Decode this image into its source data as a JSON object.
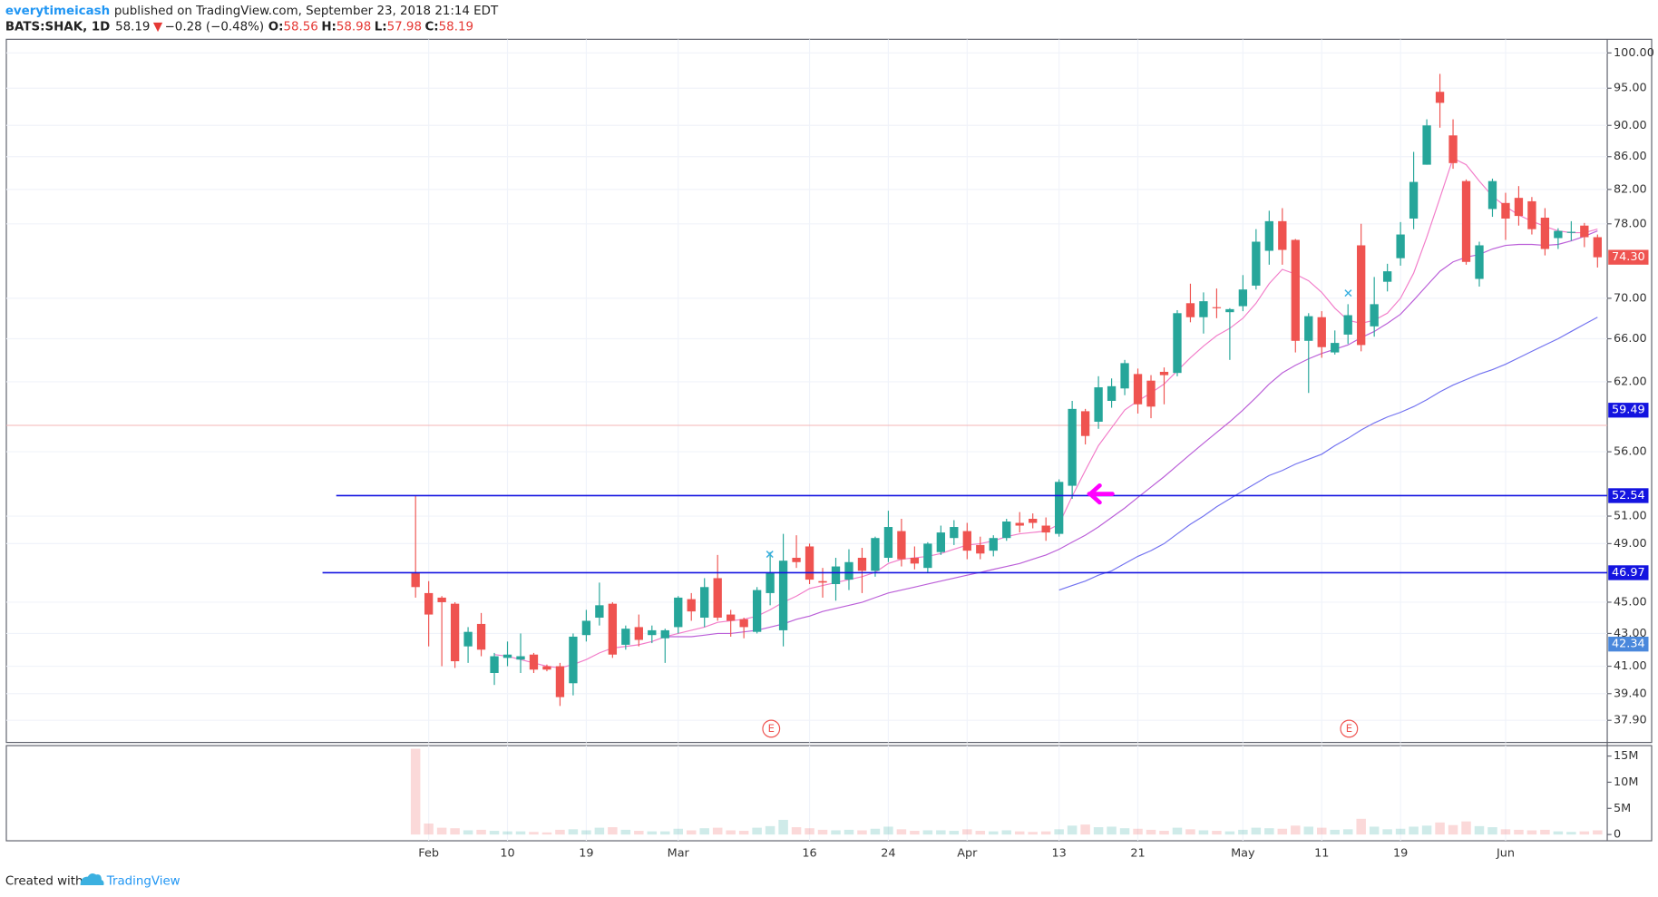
{
  "header": {
    "author": "everytimeicash",
    "published": "published on TradingView.com, September 23, 2018 21:14 EDT",
    "symbol": "BATS:SHAK, 1D",
    "last": 58.19,
    "arrow": "▼",
    "change": "−0.28 (−0.48%)",
    "open_label": "O:",
    "open": 58.56,
    "high_label": "H:",
    "high": 58.98,
    "low_label": "L:",
    "low": 57.98,
    "close_label": "C:",
    "close": 58.19
  },
  "footer": {
    "created": "Created with",
    "brand": "TradingView"
  },
  "chart_data": {
    "type": "candlestick",
    "log": true,
    "grid": true,
    "up_color": "#26a69a",
    "down_color": "#ef5350",
    "categories": [
      null,
      "Feb",
      null,
      null,
      null,
      null,
      null,
      "10",
      null,
      null,
      null,
      null,
      null,
      "19",
      null,
      null,
      null,
      null,
      null,
      null,
      "Mar",
      null,
      null,
      null,
      null,
      null,
      null,
      null,
      null,
      null,
      "16",
      null,
      null,
      null,
      null,
      null,
      "24",
      null,
      null,
      null,
      null,
      null,
      "Apr",
      null,
      null,
      null,
      null,
      null,
      null,
      "13",
      null,
      null,
      null,
      null,
      null,
      "21",
      null,
      null,
      null,
      null,
      null,
      null,
      null,
      "May",
      null,
      null,
      null,
      null,
      null,
      "11",
      null,
      null,
      null,
      null,
      null,
      "19",
      null,
      null,
      null,
      null,
      null,
      null,
      null,
      "Jun",
      null,
      null,
      null,
      null,
      null,
      null,
      null
    ],
    "open": [
      47.0,
      45.6,
      45.3,
      44.9,
      42.2,
      43.6,
      40.6,
      41.5,
      41.4,
      41.7,
      41.0,
      41.0,
      40.0,
      42.9,
      44.0,
      44.9,
      42.3,
      43.4,
      42.9,
      42.7,
      43.4,
      45.2,
      44.0,
      46.6,
      44.2,
      43.9,
      43.1,
      45.6,
      43.2,
      48.0,
      48.8,
      46.4,
      46.2,
      46.5,
      48.0,
      47.1,
      48.0,
      49.9,
      48.0,
      47.3,
      48.4,
      49.4,
      49.9,
      48.9,
      48.5,
      49.4,
      50.5,
      50.8,
      50.3,
      49.7,
      53.3,
      59.4,
      58.5,
      60.3,
      61.4,
      62.7,
      62.1,
      62.9,
      62.8,
      69.5,
      68.1,
      69.1,
      68.6,
      69.2,
      71.3,
      75.0,
      78.3,
      76.2,
      65.8,
      68.1,
      64.7,
      66.4,
      75.6,
      67.2,
      71.7,
      74.2,
      78.6,
      85.0,
      94.5,
      88.7,
      83.0,
      72.0,
      79.7,
      80.4,
      81.0,
      80.6,
      78.7,
      76.4,
      77.0,
      77.8,
      76.5
    ],
    "high": [
      52.5,
      46.4,
      45.4,
      45.0,
      43.4,
      44.3,
      41.8,
      42.5,
      43.0,
      41.8,
      41.1,
      41.2,
      43.0,
      44.5,
      46.3,
      45.0,
      43.5,
      44.2,
      43.5,
      43.3,
      45.4,
      45.6,
      46.6,
      48.2,
      44.5,
      44.0,
      46.0,
      48.4,
      49.7,
      49.6,
      49.0,
      47.3,
      48.0,
      48.6,
      48.7,
      49.5,
      51.4,
      50.8,
      48.8,
      49.1,
      50.3,
      50.7,
      50.5,
      49.5,
      49.6,
      50.8,
      51.3,
      51.2,
      50.9,
      53.8,
      60.3,
      59.6,
      62.5,
      62.3,
      64.0,
      63.2,
      62.6,
      63.3,
      68.8,
      71.5,
      70.6,
      71.0,
      69.0,
      72.4,
      77.4,
      79.5,
      79.8,
      76.3,
      68.5,
      68.7,
      66.8,
      69.4,
      78.0,
      72.2,
      73.6,
      78.2,
      86.6,
      90.8,
      97.0,
      90.8,
      83.2,
      76.0,
      83.3,
      81.6,
      82.4,
      81.1,
      79.8,
      77.5,
      78.3,
      78.1,
      76.8
    ],
    "low": [
      45.3,
      42.2,
      41.0,
      40.9,
      41.2,
      41.6,
      39.9,
      41.0,
      40.6,
      40.6,
      40.7,
      38.7,
      39.3,
      42.5,
      43.5,
      41.5,
      42.0,
      42.2,
      42.4,
      41.2,
      43.0,
      43.8,
      43.4,
      43.8,
      42.8,
      42.7,
      43.0,
      44.8,
      42.2,
      47.3,
      46.2,
      45.3,
      45.1,
      45.8,
      45.6,
      46.7,
      47.7,
      47.4,
      47.2,
      47.0,
      48.2,
      48.9,
      47.9,
      47.9,
      48.1,
      49.2,
      49.8,
      50.1,
      49.2,
      49.5,
      52.3,
      56.6,
      57.9,
      59.7,
      60.8,
      59.2,
      58.8,
      60.0,
      62.5,
      67.6,
      66.5,
      68.0,
      64.0,
      68.7,
      70.9,
      73.5,
      73.5,
      64.7,
      61.0,
      64.2,
      64.5,
      65.5,
      64.8,
      66.2,
      70.7,
      73.4,
      77.4,
      85.0,
      89.7,
      84.5,
      73.5,
      71.2,
      78.8,
      76.2,
      77.8,
      76.8,
      74.5,
      75.2,
      76.1,
      75.4,
      73.2
    ],
    "close": [
      46.0,
      44.2,
      45.0,
      41.3,
      43.1,
      42.0,
      41.6,
      41.7,
      41.6,
      40.8,
      40.8,
      39.2,
      42.8,
      43.8,
      44.8,
      41.7,
      43.3,
      42.6,
      43.2,
      43.2,
      45.3,
      44.4,
      46.0,
      44.0,
      43.8,
      43.4,
      45.8,
      47.0,
      47.8,
      47.7,
      46.5,
      46.3,
      47.4,
      47.7,
      47.1,
      49.4,
      50.2,
      47.9,
      47.6,
      49.0,
      49.8,
      50.2,
      48.5,
      48.3,
      49.4,
      50.6,
      50.3,
      50.5,
      49.8,
      53.6,
      59.6,
      57.3,
      61.5,
      61.6,
      63.7,
      60.0,
      59.8,
      62.6,
      68.5,
      68.1,
      69.7,
      69.0,
      68.9,
      70.9,
      76.0,
      78.3,
      75.1,
      65.8,
      68.2,
      65.2,
      65.6,
      68.3,
      65.4,
      69.4,
      72.8,
      76.8,
      82.9,
      90.0,
      93.0,
      85.2,
      73.8,
      75.6,
      83.0,
      78.6,
      78.9,
      77.4,
      75.2,
      77.2,
      77.1,
      76.5,
      74.3
    ],
    "ylim": [
      36.7,
      102.0
    ],
    "yticks": [
      {
        "value": 100,
        "label": "100.00"
      },
      {
        "value": 95,
        "label": "95.00"
      },
      {
        "value": 90,
        "label": "90.00"
      },
      {
        "value": 86,
        "label": "86.00"
      },
      {
        "value": 82,
        "label": "82.00"
      },
      {
        "value": 78,
        "label": "78.00"
      },
      {
        "value": 70,
        "label": "70.00"
      },
      {
        "value": 66,
        "label": "66.00"
      },
      {
        "value": 62,
        "label": "62.00"
      },
      {
        "value": 56,
        "label": "56.00"
      },
      {
        "value": 51,
        "label": "51.00"
      },
      {
        "value": 49,
        "label": "49.00"
      },
      {
        "value": 45,
        "label": "45.00"
      },
      {
        "value": 43,
        "label": "43.00"
      },
      {
        "value": 41,
        "label": "41.00"
      },
      {
        "value": 39.4,
        "label": "39.40"
      },
      {
        "value": 37.9,
        "label": "37.90"
      }
    ],
    "series": [
      {
        "color": "#f27cc9",
        "values": [
          null,
          null,
          null,
          null,
          null,
          null,
          41.7,
          41.6,
          41.4,
          41.2,
          41.0,
          40.9,
          41.1,
          41.4,
          41.8,
          42.1,
          42.2,
          42.3,
          42.5,
          42.8,
          43.0,
          43.2,
          43.4,
          43.7,
          43.8,
          43.9,
          44.1,
          44.5,
          45.0,
          45.4,
          45.9,
          46.1,
          46.3,
          46.5,
          46.7,
          47.0,
          47.6,
          47.9,
          48.0,
          48.1,
          48.3,
          48.6,
          48.9,
          49.0,
          49.2,
          49.5,
          49.7,
          49.8,
          49.9,
          50.4,
          52.5,
          54.5,
          56.5,
          58.0,
          59.5,
          60.3,
          61.0,
          61.8,
          63.0,
          64.2,
          65.3,
          66.3,
          67.0,
          68.0,
          69.5,
          71.5,
          73.0,
          72.5,
          71.8,
          70.6,
          69.0,
          67.8,
          67.5,
          67.8,
          68.5,
          70.0,
          72.6,
          76.5,
          81.0,
          85.8,
          85.0,
          83.0,
          81.2,
          80.0,
          79.0,
          78.3,
          77.7,
          77.2,
          77.0,
          77.0,
          77.4
        ]
      },
      {
        "color": "#bb5fd8",
        "values": [
          null,
          null,
          null,
          null,
          null,
          null,
          null,
          null,
          null,
          null,
          null,
          null,
          null,
          null,
          null,
          null,
          null,
          null,
          null,
          42.8,
          42.8,
          42.8,
          42.9,
          43.0,
          43.0,
          43.1,
          43.2,
          43.4,
          43.6,
          43.9,
          44.1,
          44.4,
          44.6,
          44.8,
          45.0,
          45.3,
          45.6,
          45.8,
          46.0,
          46.2,
          46.4,
          46.6,
          46.8,
          47.0,
          47.2,
          47.4,
          47.6,
          47.9,
          48.2,
          48.6,
          49.1,
          49.6,
          50.2,
          50.9,
          51.6,
          52.4,
          53.2,
          54.0,
          54.9,
          55.8,
          56.7,
          57.6,
          58.5,
          59.5,
          60.6,
          61.8,
          62.8,
          63.5,
          64.1,
          64.6,
          65.0,
          65.4,
          66.1,
          66.7,
          67.5,
          68.4,
          69.8,
          71.3,
          72.8,
          73.8,
          74.3,
          74.6,
          75.2,
          75.6,
          75.7,
          75.7,
          75.6,
          75.7,
          76.1,
          76.6,
          77.2
        ]
      },
      {
        "color": "#7272f0",
        "values": [
          null,
          null,
          null,
          null,
          null,
          null,
          null,
          null,
          null,
          null,
          null,
          null,
          null,
          null,
          null,
          null,
          null,
          null,
          null,
          null,
          null,
          null,
          null,
          null,
          null,
          null,
          null,
          null,
          null,
          null,
          null,
          null,
          null,
          null,
          null,
          null,
          null,
          null,
          null,
          null,
          null,
          null,
          null,
          null,
          null,
          null,
          null,
          null,
          null,
          45.8,
          46.1,
          46.4,
          46.8,
          47.1,
          47.6,
          48.1,
          48.5,
          49.0,
          49.7,
          50.4,
          51.0,
          51.7,
          52.3,
          52.9,
          53.5,
          54.1,
          54.5,
          55.0,
          55.4,
          55.8,
          56.5,
          57.1,
          57.8,
          58.4,
          58.9,
          59.3,
          59.8,
          60.4,
          61.1,
          61.7,
          62.2,
          62.7,
          63.1,
          63.6,
          64.2,
          64.8,
          65.4,
          66.0,
          66.7,
          67.4,
          68.1
        ]
      }
    ],
    "price_labels": [
      {
        "value": 74.3,
        "label": "74.30",
        "color": "#ef5350"
      },
      {
        "value": 59.49,
        "label": "59.49",
        "color": "#1414e0"
      },
      {
        "value": 52.54,
        "label": "52.54",
        "color": "#1414e0",
        "line": true
      },
      {
        "value": 46.97,
        "label": "46.97",
        "color": "#1414e0",
        "line": true
      },
      {
        "value": 42.34,
        "label": "42.34",
        "color": "#4a88dc"
      }
    ],
    "earnings": [
      "E",
      "E"
    ],
    "volume": {
      "values": [
        16400000,
        2100000,
        1300000,
        1200000,
        800000,
        900000,
        700000,
        600000,
        600000,
        500000,
        400000,
        900000,
        1000000,
        800000,
        1300000,
        1400000,
        900000,
        700000,
        600000,
        600000,
        1100000,
        800000,
        1200000,
        1300000,
        800000,
        700000,
        1300000,
        1600000,
        2800000,
        1400000,
        1200000,
        900000,
        800000,
        900000,
        800000,
        1100000,
        1500000,
        1000000,
        700000,
        800000,
        800000,
        700000,
        1000000,
        700000,
        600000,
        800000,
        600000,
        500000,
        600000,
        1000000,
        1700000,
        1900000,
        1400000,
        1500000,
        1200000,
        1100000,
        900000,
        700000,
        1300000,
        1000000,
        800000,
        700000,
        600000,
        900000,
        1300000,
        1200000,
        1100000,
        1700000,
        1500000,
        1300000,
        900000,
        1000000,
        3000000,
        1500000,
        1000000,
        1100000,
        1500000,
        1700000,
        2300000,
        1800000,
        2500000,
        1600000,
        1400000,
        1000000,
        900000,
        800000,
        900000,
        600000,
        500000,
        600000,
        800000
      ],
      "ylim": [
        -1200000,
        17000000
      ],
      "yticks": [
        0,
        {
          "value": 5000000,
          "label": "5M"
        },
        {
          "value": 10000000,
          "label": "10M"
        },
        {
          "value": 15000000,
          "label": "15M"
        }
      ]
    }
  }
}
